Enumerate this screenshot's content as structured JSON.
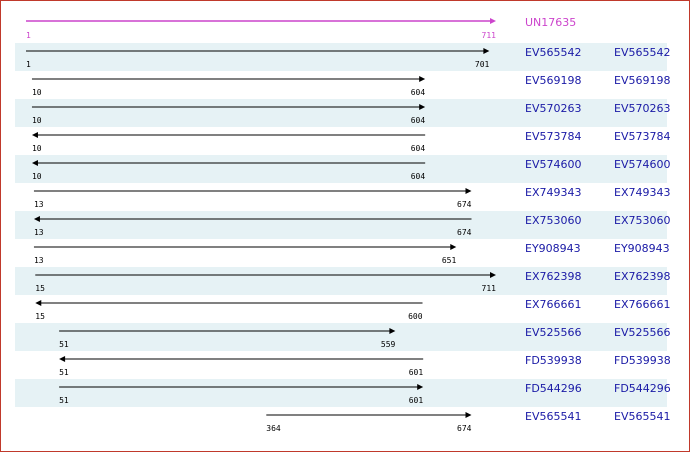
{
  "reference": {
    "label": "UN17635",
    "start": 1,
    "end": 711,
    "color": "#cc44cc"
  },
  "axis": {
    "min": 1,
    "max": 711
  },
  "colors": {
    "row_stripe": "#e6f2f5",
    "arrow": "#000000",
    "label": "#1a1aa6",
    "coord": "#000000",
    "border": "#c0392b"
  },
  "alignments": [
    {
      "label": "EV565542",
      "link": "EV565542",
      "start": 1,
      "end": 701,
      "direction": "right"
    },
    {
      "label": "EV569198",
      "link": "EV569198",
      "start": 10,
      "end": 604,
      "direction": "right"
    },
    {
      "label": "EV570263",
      "link": "EV570263",
      "start": 10,
      "end": 604,
      "direction": "right"
    },
    {
      "label": "EV573784",
      "link": "EV573784",
      "start": 10,
      "end": 604,
      "direction": "left"
    },
    {
      "label": "EV574600",
      "link": "EV574600",
      "start": 10,
      "end": 604,
      "direction": "left"
    },
    {
      "label": "EX749343",
      "link": "EX749343",
      "start": 13,
      "end": 674,
      "direction": "right"
    },
    {
      "label": "EX753060",
      "link": "EX753060",
      "start": 13,
      "end": 674,
      "direction": "left"
    },
    {
      "label": "EY908943",
      "link": "EY908943",
      "start": 13,
      "end": 651,
      "direction": "right"
    },
    {
      "label": "EX762398",
      "link": "EX762398",
      "start": 15,
      "end": 711,
      "direction": "right"
    },
    {
      "label": "EX766661",
      "link": "EX766661",
      "start": 15,
      "end": 600,
      "direction": "left"
    },
    {
      "label": "EV525566",
      "link": "EV525566",
      "start": 51,
      "end": 559,
      "direction": "right"
    },
    {
      "label": "FD539938",
      "link": "FD539938",
      "start": 51,
      "end": 601,
      "direction": "left"
    },
    {
      "label": "FD544296",
      "link": "FD544296",
      "start": 51,
      "end": 601,
      "direction": "right"
    },
    {
      "label": "EV565541",
      "link": "EV565541",
      "start": 364,
      "end": 674,
      "direction": "right"
    }
  ]
}
